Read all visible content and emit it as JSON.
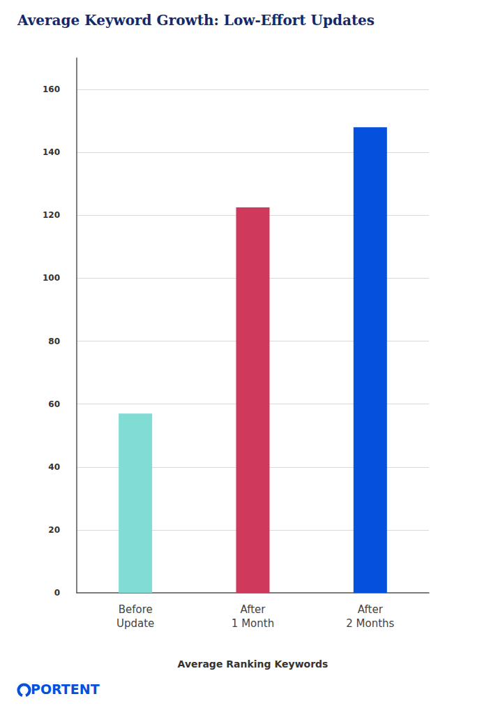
{
  "chart_data": {
    "type": "bar",
    "title": "Average Keyword Growth: Low-Effort Updates",
    "x_label": "Average Ranking Keywords",
    "categories": [
      "Before Update",
      "After 1 Month",
      "After 2 Months"
    ],
    "values": [
      57,
      122.5,
      148
    ],
    "colors": [
      "#80dcd4",
      "#cf3a5c",
      "#0451dd"
    ],
    "ylim": [
      0,
      170
    ],
    "yticks": [
      0,
      20,
      40,
      60,
      80,
      100,
      120,
      140,
      160
    ],
    "grid": true,
    "annotations": [
      "PORTENT"
    ]
  }
}
